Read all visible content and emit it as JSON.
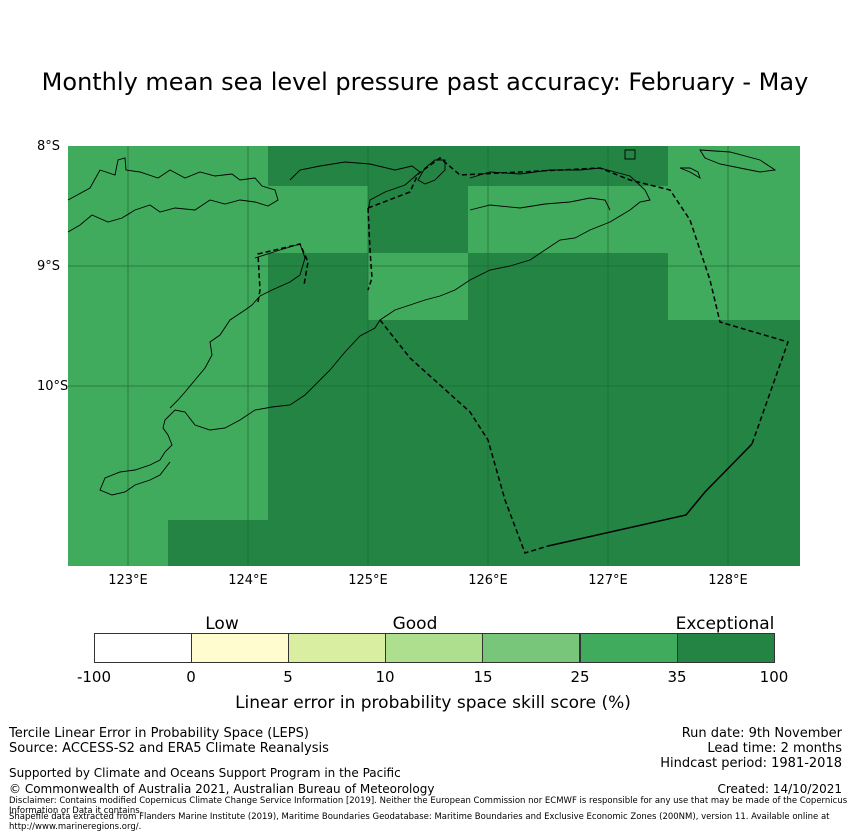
{
  "title": "Monthly mean sea level pressure past accuracy: February - May",
  "map": {
    "lat_labels": [
      "8°S",
      "9°S",
      "10°S"
    ],
    "lon_labels": [
      "123°E",
      "124°E",
      "125°E",
      "126°E",
      "127°E",
      "128°E"
    ]
  },
  "colorbar": {
    "categories": [
      "Low",
      "Good",
      "Exceptional"
    ],
    "ticks": [
      "-100",
      "0",
      "5",
      "10",
      "15",
      "25",
      "35",
      "100"
    ],
    "colors": [
      "#ffffff",
      "#fffdd0",
      "#d9eea0",
      "#addf8e",
      "#78c679",
      "#41ab5d",
      "#238443"
    ],
    "label": "Linear error in probability space skill score (%)"
  },
  "footer": {
    "left": [
      "Tercile Linear Error in Probability Space (LEPS)",
      "Source: ACCESS-S2 and ERA5 Climate Reanalysis",
      "Supported by Climate and Oceans Support Program in the Pacific",
      "© Commonwealth of Australia 2021, Australian Bureau of Meteorology"
    ],
    "right": [
      "Run date: 9th November",
      "Lead time: 2 months",
      "Hindcast period: 1981-2018",
      "Created: 14/10/2021"
    ],
    "disclaimer": [
      "Disclaimer: Contains modified Copernicus Climate Change Service Information [2019]. Neither the European Commission nor ECMWF is responsible for any use that may be made of the Copernicus Information or Data it contains.",
      "Shapefile data extracted from Flanders Marine Institute (2019), Maritime Boundaries Geodatabase: Maritime Boundaries and Exclusive Economic Zones (200NM), version 11. Available online at http://www.marineregions.org/."
    ]
  }
}
